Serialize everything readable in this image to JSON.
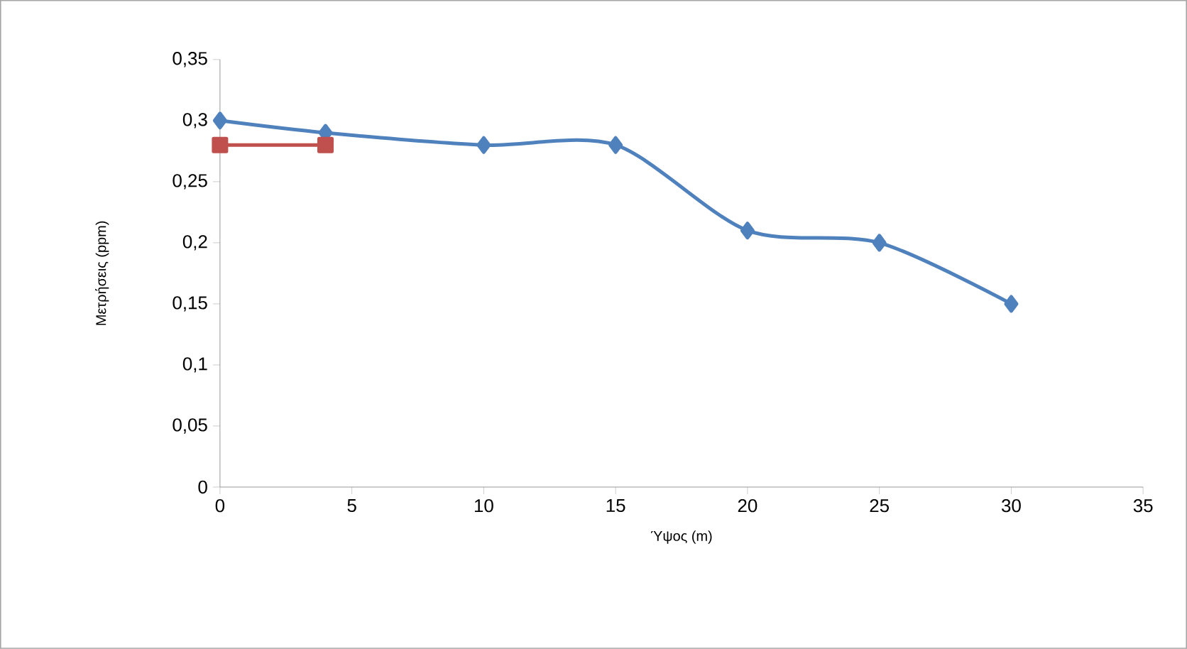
{
  "chart_data": {
    "type": "line",
    "xlabel": "Ύψος (m)",
    "ylabel": "Μετρήσεις (ppm)",
    "xlim": [
      0,
      35
    ],
    "xticks": [
      0,
      5,
      10,
      15,
      20,
      25,
      30,
      35
    ],
    "ylim": [
      0,
      0.35
    ],
    "yticks": [
      0,
      {
        "value": 0.05,
        "label": "0,05"
      },
      {
        "value": 0.1,
        "label": "0,1"
      },
      {
        "value": 0.15,
        "label": "0,15"
      },
      {
        "value": 0.2,
        "label": "0,2"
      },
      {
        "value": 0.25,
        "label": "0,25"
      },
      {
        "value": 0.3,
        "label": "0,3"
      },
      {
        "value": 0.35,
        "label": "0,35"
      }
    ],
    "grid": false,
    "line_style": "solid",
    "series": [
      {
        "color": "#4f81bd",
        "marker": "diamond",
        "x": [
          0,
          4,
          10,
          15,
          20,
          25,
          30
        ],
        "values": [
          0.3,
          0.29,
          0.28,
          0.28,
          0.21,
          0.2,
          0.15
        ]
      },
      {
        "color": "#c0504d",
        "marker": "square",
        "x": [
          0,
          4
        ],
        "values": [
          0.28,
          0.28
        ]
      }
    ]
  }
}
